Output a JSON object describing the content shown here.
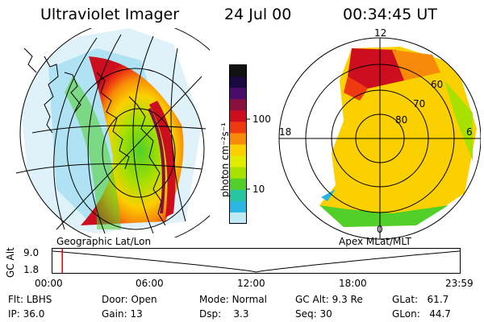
{
  "header": {
    "instrument": "Ultraviolet Imager",
    "date": "24 Jul 00",
    "time": "00:34:45 UT"
  },
  "colorbar": {
    "label": "photon cm⁻²s⁻¹",
    "ticks": [
      "100",
      "10"
    ],
    "colors": [
      "#111111",
      "#1a0840",
      "#4a0c6a",
      "#8a1040",
      "#cc0e1e",
      "#ee3a10",
      "#f78a08",
      "#fbd000",
      "#e2ec00",
      "#a8e000",
      "#50d028",
      "#28c6a0",
      "#2ab6e2",
      "#bfe9f5"
    ]
  },
  "left_panel": {
    "caption": "Geographic Lat/Lon"
  },
  "right_panel": {
    "caption": "Apex MLat/MLT",
    "mlt_labels": [
      "12",
      "18",
      "6",
      "0"
    ],
    "lat_labels": [
      "60",
      "70",
      "80"
    ]
  },
  "timeline": {
    "axis_title": "GC Alt",
    "y_ticks": [
      "9.0",
      "1.8"
    ],
    "x_ticks": [
      "00:00",
      "06:00",
      "12:00",
      "18:00",
      "23:59"
    ],
    "marker_time": "00:34:45",
    "curve": {
      "apogee_fraction": [
        0.0,
        1.0
      ],
      "perigee_fraction": 0.5
    }
  },
  "status": {
    "flt_label": "Flt:",
    "flt_value": "LBHS",
    "ip_label": "IP:",
    "ip_value": "36.0",
    "door_label": "Door:",
    "door_value": "Open",
    "gain_label": "Gain:",
    "gain_value": "13",
    "mode_label": "Mode:",
    "mode_value": "Normal",
    "dsp_label": "Dsp:",
    "dsp_value": "3.3",
    "gcalt_label": "GC Alt:",
    "gcalt_value": "9.3 Re",
    "seq_label": "Seq:",
    "seq_value": "30",
    "glat_label": "GLat:",
    "glat_value": "61.7",
    "glon_label": "GLon:",
    "glon_value": "44.7"
  }
}
